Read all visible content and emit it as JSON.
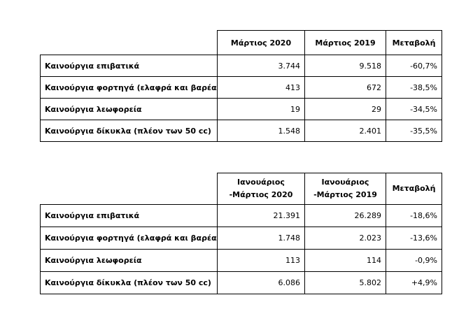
{
  "table1": {
    "headers": [
      "Μάρτιος 2020",
      "Μάρτιος 2019",
      "Μεταβολή"
    ],
    "rows": [
      {
        "label": "Καινούργια επιβατικά",
        "v1": "3.744",
        "v2": "9.518",
        "change": "-60,7%"
      },
      {
        "label": "Καινούργια φορτηγά (ελαφρά και βαρέα)",
        "v1": "413",
        "v2": "672",
        "change": "-38,5%"
      },
      {
        "label": "Καινούργια λεωφορεία",
        "v1": "19",
        "v2": "29",
        "change": "-34,5%"
      },
      {
        "label": "Καινούργια δίκυκλα (πλέον των 50 cc)",
        "v1": "1.548",
        "v2": "2.401",
        "change": "-35,5%"
      }
    ]
  },
  "table2": {
    "headers": [
      {
        "line1": "Ιανουάριος",
        "line2": "-Μάρτιος 2020"
      },
      {
        "line1": "Ιανουάριος",
        "line2": "-Μάρτιος 2019"
      },
      {
        "line1": "Μεταβολή",
        "line2": ""
      }
    ],
    "rows": [
      {
        "label": "Καινούργια επιβατικά",
        "v1": "21.391",
        "v2": "26.289",
        "change": "-18,6%"
      },
      {
        "label": "Καινούργια φορτηγά (ελαφρά και βαρέα)",
        "v1": "1.748",
        "v2": "2.023",
        "change": "-13,6%"
      },
      {
        "label": "Καινούργια λεωφορεία",
        "v1": "113",
        "v2": "114",
        "change": "-0,9%"
      },
      {
        "label": "Καινούργια δίκυκλα (πλέον των 50 cc)",
        "v1": "6.086",
        "v2": "5.802",
        "change": "+4,9%"
      }
    ]
  }
}
